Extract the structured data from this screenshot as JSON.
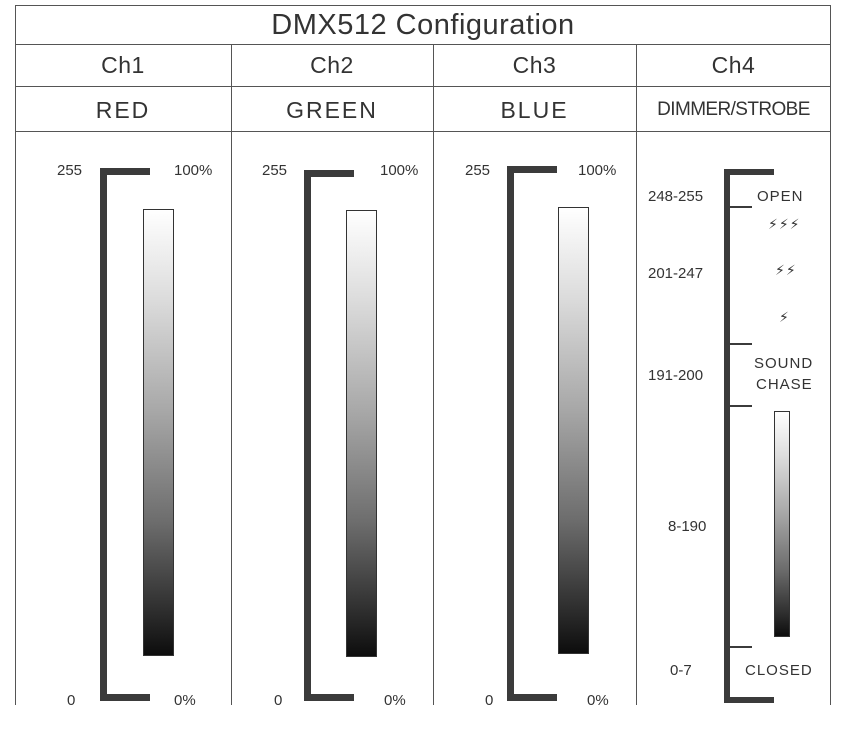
{
  "title": "DMX512 Configuration",
  "channels": [
    {
      "name": "Ch1",
      "function": "RED",
      "top_value": "255",
      "bottom_value": "0",
      "top_percent": "100%",
      "bottom_percent": "0%"
    },
    {
      "name": "Ch2",
      "function": "GREEN",
      "top_value": "255",
      "bottom_value": "0",
      "top_percent": "100%",
      "bottom_percent": "0%"
    },
    {
      "name": "Ch3",
      "function": "BLUE",
      "top_value": "255",
      "bottom_value": "0",
      "top_percent": "100%",
      "bottom_percent": "0%"
    },
    {
      "name": "Ch4",
      "function": "DIMMER/STROBE"
    }
  ],
  "ch4_ranges": [
    {
      "range": "248-255",
      "meaning": "OPEN"
    },
    {
      "range": "201-247",
      "meaning": "strobe",
      "icons": [
        "strobe-fast-icon",
        "strobe-medium-icon",
        "strobe-slow-icon"
      ]
    },
    {
      "range": "191-200",
      "meaning_line1": "SOUND",
      "meaning_line2": "CHASE"
    },
    {
      "range": "8-190",
      "meaning": "dimmer",
      "icon": "dimmer-gradient"
    },
    {
      "range": "0-7",
      "meaning": "CLOSED"
    }
  ],
  "colors": {
    "line": "#555555",
    "bar": "#3b3b3b",
    "text": "#333333"
  }
}
